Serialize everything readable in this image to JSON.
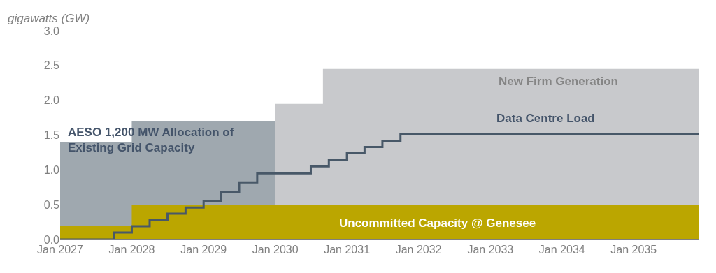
{
  "chart_data": {
    "type": "step",
    "ylabel": "gigawatts (GW)",
    "legend": false,
    "series": [
      {
        "name": "New Firm Generation",
        "type": "area",
        "color": "#c8c9cc",
        "x": [
          "2030-01",
          "2030-09",
          "2035-12"
        ],
        "values": [
          1.95,
          2.45,
          2.45
        ]
      },
      {
        "name": "AESO 1,200 MW Allocation of Existing Grid Capacity",
        "type": "area",
        "color": "#9fa8af",
        "x": [
          "2027-01",
          "2028-01",
          "2030-01"
        ],
        "values": [
          1.4,
          1.7,
          1.7
        ]
      },
      {
        "name": "Uncommitted Capacity @ Genesee",
        "type": "area",
        "color": "#bba600",
        "x": [
          "2027-01",
          "2028-01",
          "2035-12"
        ],
        "values": [
          0.2,
          0.5,
          0.5
        ]
      },
      {
        "name": "Data Centre Load",
        "color": "#485868",
        "x": [
          "2027-01",
          "2027-10",
          "2028-01",
          "2028-04",
          "2028-07",
          "2028-10",
          "2029-01",
          "2029-04",
          "2029-07",
          "2029-10",
          "2030-07",
          "2030-10",
          "2031-01",
          "2031-04",
          "2031-07",
          "2031-10",
          "2035-12"
        ],
        "values": [
          0,
          0.1,
          0.19,
          0.28,
          0.37,
          0.46,
          0.55,
          0.68,
          0.82,
          0.95,
          1.05,
          1.14,
          1.24,
          1.33,
          1.42,
          1.51,
          1.51
        ]
      }
    ],
    "xlim": [
      "2027-01",
      "2035-12"
    ],
    "xticks": [
      {
        "value": "2027-01",
        "label": "Jan 2027"
      },
      {
        "value": "2028-01",
        "label": "Jan 2028"
      },
      {
        "value": "2029-01",
        "label": "Jan 2029"
      },
      {
        "value": "2030-01",
        "label": "Jan 2030"
      },
      {
        "value": "2031-01",
        "label": "Jan 2031"
      },
      {
        "value": "2032-01",
        "label": "Jan 2032"
      },
      {
        "value": "2033-01",
        "label": "Jan 2033"
      },
      {
        "value": "2034-01",
        "label": "Jan 2034"
      },
      {
        "value": "2035-01",
        "label": "Jan 2035"
      }
    ],
    "ylim": [
      0,
      3
    ],
    "yticks": [
      {
        "value": 0,
        "label": "0.0"
      },
      {
        "value": 0.5,
        "label": "0.5"
      },
      {
        "value": 1,
        "label": "1.0"
      },
      {
        "value": 1.5,
        "label": "1.5"
      },
      {
        "value": 2,
        "label": "2.0"
      },
      {
        "value": 2.5,
        "label": "2.5"
      },
      {
        "value": 3,
        "label": "3.0"
      }
    ]
  }
}
